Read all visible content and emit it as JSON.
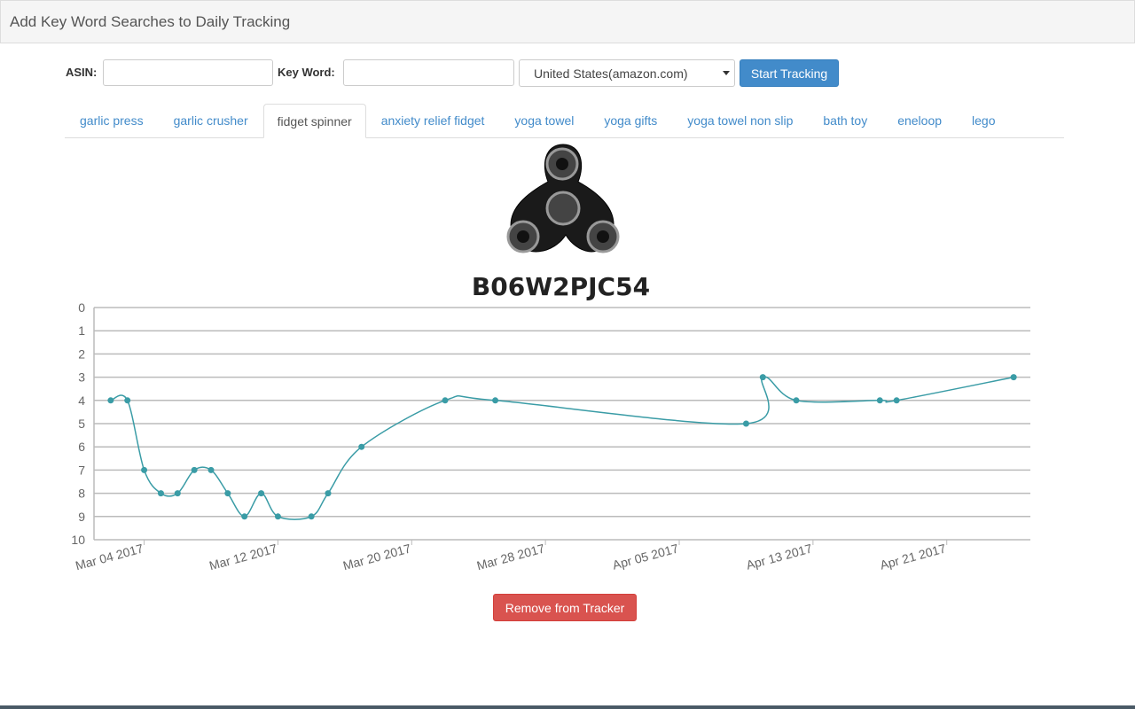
{
  "header": {
    "title": "Add Key Word Searches to Daily Tracking"
  },
  "form": {
    "asin_label": "ASIN:",
    "keyword_label": "Key Word:",
    "marketplace": "United States(amazon.com)",
    "submit": "Start Tracking"
  },
  "tabs": [
    "garlic press",
    "garlic crusher",
    "fidget spinner",
    "anxiety relief fidget",
    "yoga towel",
    "yoga gifts",
    "yoga towel non slip",
    "bath toy",
    "eneloop",
    "lego"
  ],
  "active_tab": 2,
  "product": {
    "asin": "B06W2PJC54"
  },
  "chart_data": {
    "type": "line",
    "x": [
      "2017-03-02",
      "2017-03-03",
      "2017-03-04",
      "2017-03-05",
      "2017-03-06",
      "2017-03-07",
      "2017-03-08",
      "2017-03-09",
      "2017-03-10",
      "2017-03-11",
      "2017-03-12",
      "2017-03-14",
      "2017-03-15",
      "2017-03-17",
      "2017-03-22",
      "2017-03-25",
      "2017-04-09",
      "2017-04-10",
      "2017-04-12",
      "2017-04-17",
      "2017-04-18",
      "2017-04-25"
    ],
    "values": [
      4,
      4,
      7,
      8,
      8,
      7,
      7,
      8,
      9,
      8,
      9,
      9,
      8,
      6,
      4,
      4,
      5,
      3,
      4,
      4,
      4,
      3
    ],
    "color": "#3a9ca6",
    "xlim": [
      "2017-03-01",
      "2017-04-26"
    ],
    "xticks": [
      {
        "value": "2017-03-04",
        "label": "Mar 04 2017"
      },
      {
        "value": "2017-03-12",
        "label": "Mar 12 2017"
      },
      {
        "value": "2017-03-20",
        "label": "Mar 20 2017"
      },
      {
        "value": "2017-03-28",
        "label": "Mar 28 2017"
      },
      {
        "value": "2017-04-05",
        "label": "Apr 05 2017"
      },
      {
        "value": "2017-04-13",
        "label": "Apr 13 2017"
      },
      {
        "value": "2017-04-21",
        "label": "Apr 21 2017"
      }
    ],
    "ylim": [
      0,
      10
    ],
    "yticks": [
      0,
      1,
      2,
      3,
      4,
      5,
      6,
      7,
      8,
      9,
      10
    ],
    "y_inverted": true,
    "grid": true
  },
  "remove_button": "Remove from Tracker"
}
